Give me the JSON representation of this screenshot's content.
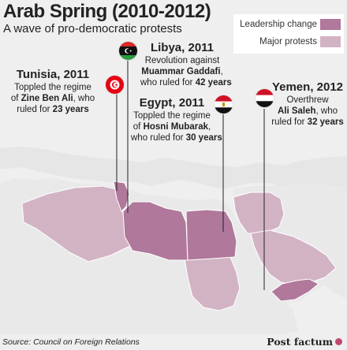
{
  "header": {
    "title": "Arab Spring (2010-2012)",
    "subtitle": "A wave of pro-democratic protests"
  },
  "legend": {
    "items": [
      {
        "label": "Leadership change",
        "color": "#b0789a"
      },
      {
        "label": "Major protests",
        "color": "#d2b3c4"
      }
    ]
  },
  "colors": {
    "land": "#ededed",
    "background": "#efefef",
    "leadership_change": "#b0789a",
    "major_protests": "#d2b3c4",
    "borders": "#ffffff"
  },
  "callouts": {
    "libya": {
      "country": "Libya, 2011",
      "line1": "Revolution against",
      "leader": "Muammar Gaddafi",
      "line3_pre": "who ruled for",
      "years": "42 years",
      "flag_icon": "libya-flag-icon"
    },
    "tunisia": {
      "country": "Tunisia, 2011",
      "line1": "Toppled the regime",
      "line2_pre": "of",
      "leader": "Zine Ben Ali",
      "line2_post": ", who",
      "line3_pre": "ruled for",
      "years": "23 years",
      "flag_icon": "tunisia-flag-icon"
    },
    "egypt": {
      "country": "Egypt, 2011",
      "line1": "Toppled the regime",
      "line2_pre": "of",
      "leader": "Hosni Mubarak",
      "line2_post": ",",
      "line3_pre": "who ruled for",
      "years": "30 years",
      "flag_icon": "egypt-flag-icon"
    },
    "yemen": {
      "country": "Yemen, 2012",
      "line1": "Overthrew",
      "leader": "Ali Saleh",
      "leader_post": ", who",
      "line3_pre": "ruled for",
      "years": "32 years",
      "flag_icon": "yemen-flag-icon"
    }
  },
  "footer": {
    "source": "Source: Council on Foreign Relations",
    "brand": "Post factum"
  }
}
